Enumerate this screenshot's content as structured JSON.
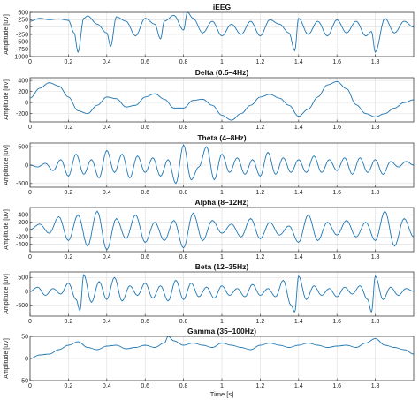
{
  "chart_data": [
    {
      "type": "line",
      "title": "iEEG",
      "ylabel": "Amplitude [uV]",
      "xlabel": "",
      "xlim": [
        0,
        2
      ],
      "ylim": [
        -1000,
        500
      ],
      "yticks": [
        500,
        250,
        0,
        -250,
        -500,
        -750,
        -1000
      ],
      "xticks": [
        0,
        0.2,
        0.4,
        0.6,
        0.8,
        1,
        1.2,
        1.4,
        1.6,
        1.8
      ],
      "grid": true,
      "x": [
        0,
        0.05,
        0.1,
        0.15,
        0.2,
        0.23,
        0.25,
        0.28,
        0.3,
        0.35,
        0.4,
        0.42,
        0.45,
        0.5,
        0.55,
        0.6,
        0.65,
        0.68,
        0.7,
        0.75,
        0.8,
        0.82,
        0.85,
        0.9,
        0.95,
        1.0,
        1.05,
        1.1,
        1.15,
        1.2,
        1.25,
        1.3,
        1.35,
        1.38,
        1.4,
        1.45,
        1.5,
        1.55,
        1.6,
        1.65,
        1.7,
        1.75,
        1.78,
        1.8,
        1.85,
        1.9,
        1.95,
        2.0
      ],
      "values": [
        200,
        300,
        250,
        280,
        230,
        -200,
        -850,
        300,
        380,
        100,
        -200,
        -650,
        350,
        200,
        -300,
        300,
        100,
        -400,
        200,
        400,
        -100,
        500,
        300,
        -200,
        200,
        -300,
        100,
        -250,
        200,
        -300,
        250,
        100,
        -200,
        -800,
        300,
        -250,
        200,
        -300,
        250,
        -200,
        200,
        -300,
        -150,
        -850,
        300,
        -200,
        200,
        0
      ]
    },
    {
      "type": "line",
      "title": "Delta (0.5–4Hz)",
      "ylabel": "Amplitude [uV]",
      "xlabel": "",
      "xlim": [
        0,
        2
      ],
      "ylim": [
        -350,
        450
      ],
      "yticks": [
        400,
        200,
        0,
        -200
      ],
      "xticks": [
        0,
        0.2,
        0.4,
        0.6,
        0.8,
        1,
        1.2,
        1.4,
        1.6,
        1.8
      ],
      "grid": true,
      "x": [
        0,
        0.05,
        0.1,
        0.15,
        0.2,
        0.25,
        0.3,
        0.35,
        0.4,
        0.45,
        0.5,
        0.55,
        0.6,
        0.65,
        0.7,
        0.75,
        0.8,
        0.85,
        0.9,
        0.95,
        1.0,
        1.05,
        1.1,
        1.15,
        1.2,
        1.25,
        1.3,
        1.35,
        1.4,
        1.45,
        1.5,
        1.55,
        1.6,
        1.65,
        1.7,
        1.75,
        1.8,
        1.85,
        1.9,
        1.95,
        2.0
      ],
      "values": [
        80,
        260,
        360,
        300,
        100,
        -150,
        -200,
        -50,
        100,
        70,
        -80,
        -50,
        100,
        160,
        60,
        -100,
        -100,
        40,
        60,
        -50,
        -230,
        -320,
        -200,
        -50,
        100,
        150,
        80,
        -50,
        -250,
        -120,
        100,
        320,
        380,
        250,
        -40,
        -200,
        -260,
        -200,
        -100,
        0,
        50
      ]
    },
    {
      "type": "line",
      "title": "Theta (4–8Hz)",
      "ylabel": "Amplitude [uV]",
      "xlabel": "",
      "xlim": [
        0,
        2
      ],
      "ylim": [
        -600,
        600
      ],
      "yticks": [
        500,
        0,
        -500
      ],
      "xticks": [
        0,
        0.2,
        0.4,
        0.6,
        0.8,
        1,
        1.2,
        1.4,
        1.6,
        1.8
      ],
      "grid": true,
      "x": [
        0,
        0.04,
        0.08,
        0.12,
        0.16,
        0.2,
        0.24,
        0.28,
        0.32,
        0.36,
        0.4,
        0.44,
        0.48,
        0.52,
        0.56,
        0.6,
        0.64,
        0.68,
        0.72,
        0.76,
        0.8,
        0.84,
        0.88,
        0.92,
        0.96,
        1.0,
        1.04,
        1.08,
        1.12,
        1.16,
        1.2,
        1.24,
        1.28,
        1.32,
        1.36,
        1.4,
        1.44,
        1.48,
        1.52,
        1.56,
        1.6,
        1.64,
        1.68,
        1.72,
        1.76,
        1.8,
        1.84,
        1.88,
        1.92,
        1.96,
        2.0
      ],
      "values": [
        0,
        -50,
        50,
        -150,
        150,
        -300,
        300,
        -250,
        150,
        -350,
        400,
        -200,
        300,
        -350,
        250,
        -200,
        200,
        -300,
        150,
        -500,
        550,
        -400,
        -50,
        500,
        -400,
        300,
        -200,
        200,
        -250,
        150,
        -300,
        350,
        -250,
        200,
        -200,
        150,
        -200,
        250,
        -200,
        150,
        -150,
        200,
        -250,
        200,
        -200,
        150,
        -250,
        100,
        -50,
        100,
        0
      ]
    },
    {
      "type": "line",
      "title": "Alpha (8–12Hz)",
      "ylabel": "Amplitude [uV]",
      "xlabel": "",
      "xlim": [
        0,
        2
      ],
      "ylim": [
        -600,
        600
      ],
      "yticks": [
        400,
        200,
        0,
        -200,
        -400
      ],
      "xticks": [
        0,
        0.2,
        0.4,
        0.6,
        0.8,
        1,
        1.2,
        1.4,
        1.6,
        1.8
      ],
      "grid": true,
      "x": [
        0,
        0.05,
        0.1,
        0.15,
        0.2,
        0.25,
        0.3,
        0.35,
        0.4,
        0.45,
        0.5,
        0.55,
        0.6,
        0.65,
        0.7,
        0.75,
        0.8,
        0.85,
        0.9,
        0.95,
        1.0,
        1.05,
        1.1,
        1.15,
        1.2,
        1.25,
        1.3,
        1.35,
        1.4,
        1.45,
        1.5,
        1.55,
        1.6,
        1.65,
        1.7,
        1.75,
        1.8,
        1.85,
        1.9,
        1.95,
        2.0
      ],
      "values": [
        0,
        150,
        -100,
        350,
        -300,
        400,
        -450,
        500,
        -550,
        300,
        -250,
        400,
        -350,
        200,
        -300,
        250,
        -500,
        450,
        -300,
        250,
        -100,
        150,
        -200,
        300,
        -250,
        200,
        -150,
        100,
        -350,
        400,
        -300,
        200,
        -150,
        250,
        -200,
        200,
        -300,
        500,
        -450,
        300,
        -200
      ]
    },
    {
      "type": "line",
      "title": "Beta (12–35Hz)",
      "ylabel": "Amplitude [uV]",
      "xlabel": "",
      "xlim": [
        0,
        2
      ],
      "ylim": [
        -900,
        700
      ],
      "yticks": [
        500,
        0,
        -500
      ],
      "xticks": [
        0,
        0.2,
        0.4,
        0.6,
        0.8,
        1,
        1.2,
        1.4,
        1.6,
        1.8
      ],
      "grid": true,
      "x": [
        0,
        0.04,
        0.08,
        0.12,
        0.16,
        0.2,
        0.24,
        0.26,
        0.28,
        0.32,
        0.36,
        0.4,
        0.44,
        0.48,
        0.52,
        0.56,
        0.6,
        0.64,
        0.68,
        0.72,
        0.76,
        0.8,
        0.84,
        0.88,
        0.92,
        0.96,
        1.0,
        1.04,
        1.08,
        1.12,
        1.16,
        1.2,
        1.24,
        1.28,
        1.32,
        1.36,
        1.38,
        1.4,
        1.44,
        1.48,
        1.52,
        1.56,
        1.6,
        1.64,
        1.68,
        1.72,
        1.76,
        1.78,
        1.8,
        1.84,
        1.88,
        1.92,
        1.96,
        2.0
      ],
      "values": [
        0,
        150,
        -150,
        100,
        -100,
        300,
        -300,
        -700,
        600,
        -400,
        350,
        -300,
        500,
        -350,
        200,
        -150,
        300,
        -250,
        200,
        -350,
        400,
        -300,
        300,
        -200,
        150,
        -250,
        200,
        -150,
        100,
        -200,
        250,
        -150,
        100,
        -200,
        400,
        -500,
        -750,
        550,
        -300,
        200,
        -150,
        100,
        -200,
        150,
        -100,
        200,
        -300,
        -750,
        550,
        -300,
        150,
        -150,
        100,
        0
      ]
    },
    {
      "type": "line",
      "title": "Gamma (35–100Hz)",
      "ylabel": "Amplitude [uV]",
      "xlabel": "Time [s]",
      "xlim": [
        0,
        2
      ],
      "ylim": [
        -50,
        50
      ],
      "yticks": [
        50,
        0,
        -50
      ],
      "xticks": [
        0,
        0.2,
        0.4,
        0.6,
        0.8,
        1,
        1.2,
        1.4,
        1.6,
        1.8
      ],
      "grid": true,
      "x": [
        0,
        0.05,
        0.1,
        0.15,
        0.2,
        0.25,
        0.3,
        0.35,
        0.4,
        0.45,
        0.5,
        0.55,
        0.6,
        0.65,
        0.7,
        0.72,
        0.75,
        0.8,
        0.85,
        0.9,
        0.95,
        1.0,
        1.05,
        1.1,
        1.15,
        1.2,
        1.25,
        1.3,
        1.35,
        1.4,
        1.45,
        1.5,
        1.55,
        1.6,
        1.65,
        1.7,
        1.75,
        1.8,
        1.85,
        1.9,
        1.95,
        2.0
      ],
      "values": [
        0,
        8,
        10,
        20,
        30,
        38,
        25,
        20,
        28,
        30,
        22,
        25,
        30,
        25,
        35,
        50,
        40,
        30,
        35,
        30,
        25,
        35,
        30,
        25,
        20,
        30,
        35,
        30,
        25,
        30,
        35,
        30,
        25,
        28,
        30,
        25,
        35,
        45,
        30,
        25,
        20,
        10
      ]
    }
  ]
}
